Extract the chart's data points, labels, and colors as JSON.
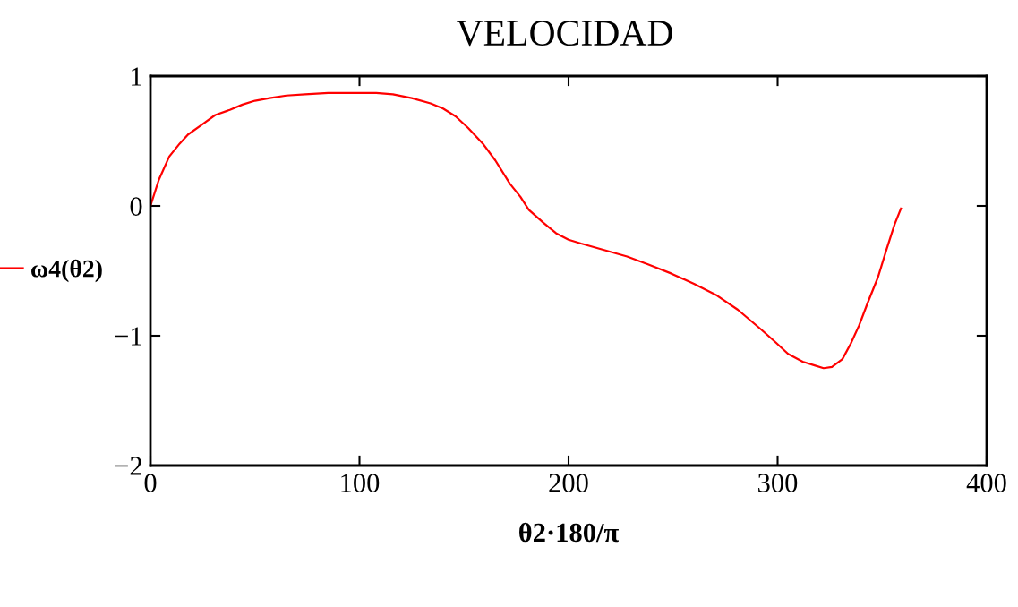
{
  "chart_data": {
    "type": "line",
    "title": "VELOCIDAD",
    "xlabel": "θ2·180/π",
    "x": [
      0,
      4,
      9,
      14,
      18,
      25,
      31,
      38,
      44,
      50,
      57,
      65,
      74,
      85,
      99,
      108,
      116,
      125,
      134,
      140,
      146,
      152,
      159,
      165,
      172,
      177,
      181,
      188,
      194,
      200,
      206,
      217,
      228,
      238,
      249,
      260,
      271,
      281,
      292,
      299,
      305,
      312,
      318,
      322,
      326,
      331,
      335,
      339,
      343,
      348,
      352,
      356,
      359
    ],
    "series": [
      {
        "name": "ω4(θ2)",
        "color": "#ff0000",
        "values": [
          0,
          0.2,
          0.38,
          0.48,
          0.55,
          0.63,
          0.7,
          0.74,
          0.78,
          0.81,
          0.83,
          0.85,
          0.86,
          0.87,
          0.87,
          0.87,
          0.86,
          0.83,
          0.79,
          0.75,
          0.69,
          0.6,
          0.48,
          0.35,
          0.17,
          0.07,
          -0.03,
          -0.13,
          -0.21,
          -0.26,
          -0.29,
          -0.34,
          -0.39,
          -0.45,
          -0.52,
          -0.6,
          -0.69,
          -0.8,
          -0.95,
          -1.05,
          -1.14,
          -1.2,
          -1.23,
          -1.25,
          -1.24,
          -1.18,
          -1.06,
          -0.92,
          -0.75,
          -0.55,
          -0.34,
          -0.14,
          -0.02
        ]
      }
    ],
    "xlim": [
      0,
      400
    ],
    "xticks": [
      0,
      100,
      200,
      300,
      400
    ],
    "ylim": [
      -2,
      1
    ],
    "yticks": [
      -2,
      -1,
      0,
      1
    ],
    "grid": false,
    "legend": "left",
    "marker": "none",
    "line_style": "solid"
  }
}
